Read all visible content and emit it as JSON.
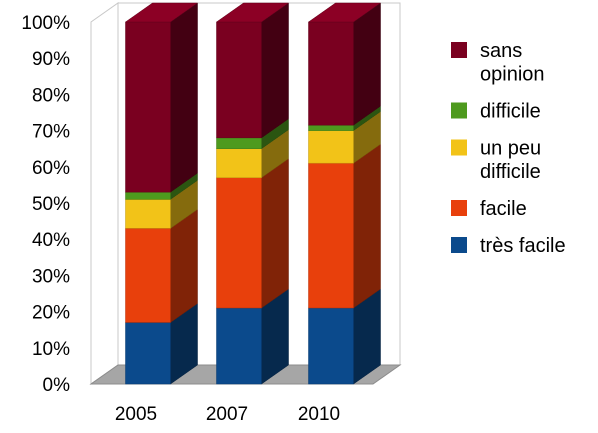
{
  "chart_data": {
    "type": "bar",
    "stacked": true,
    "three_d": true,
    "categories": [
      "2005",
      "2007",
      "2010"
    ],
    "series": [
      {
        "name": "très facile",
        "color": "#0B4A8C",
        "values": [
          17,
          21,
          21
        ]
      },
      {
        "name": "facile",
        "color": "#E8400C",
        "values": [
          26,
          36,
          40
        ]
      },
      {
        "name": "un peu difficile",
        "color": "#F2C318",
        "values": [
          8,
          8,
          9
        ]
      },
      {
        "name": "difficile",
        "color": "#4E9A1E",
        "values": [
          2,
          3,
          1.5
        ]
      },
      {
        "name": "sans opinion",
        "color": "#7A0020",
        "values": [
          47,
          32,
          28.5
        ]
      }
    ],
    "yticks": [
      "0%",
      "10%",
      "20%",
      "30%",
      "40%",
      "50%",
      "60%",
      "70%",
      "80%",
      "90%",
      "100%"
    ],
    "ylim": [
      0,
      100
    ],
    "grid": false,
    "legend_position": "right",
    "legend_order": [
      "sans opinion",
      "difficile",
      "un peu difficile",
      "facile",
      "très facile"
    ],
    "legend_lines": {
      "sans opinion": [
        "sans",
        "opinion"
      ],
      "difficile": [
        "difficile"
      ],
      "un peu difficile": [
        "un peu",
        "difficile"
      ],
      "facile": [
        "facile"
      ],
      "très facile": [
        "très facile"
      ]
    },
    "floor_color": "#A6A6A6",
    "wall_color": "#FFFFFF"
  }
}
